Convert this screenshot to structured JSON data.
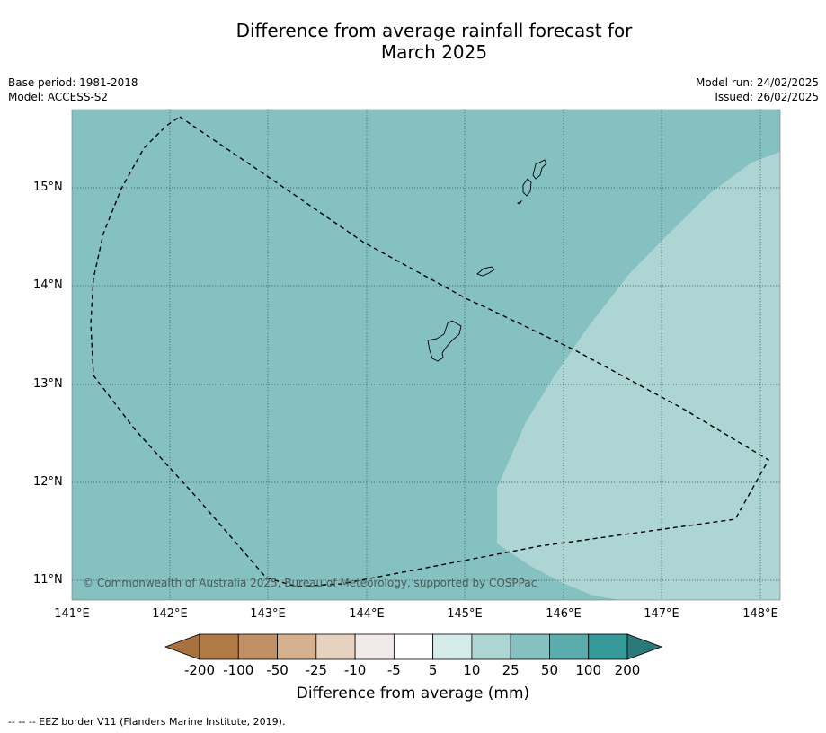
{
  "title_line1": "Difference from average rainfall forecast for",
  "title_line2": "March 2025",
  "base_period": "Base period: 1981-2018",
  "model": "Model: ACCESS-S2",
  "model_run": "Model run: 24/02/2025",
  "issued": "Issued: 26/02/2025",
  "lat_labels": [
    "15°N",
    "14°N",
    "13°N",
    "12°N",
    "11°N"
  ],
  "lon_labels": [
    "141°E",
    "142°E",
    "143°E",
    "144°E",
    "145°E",
    "146°E",
    "147°E",
    "148°E"
  ],
  "copyright": "© Commonwealth of Australia 2025, Bureau of Meteorology, supported by COSPPac",
  "colorbar": {
    "labels": [
      "-200",
      "-100",
      "-50",
      "-25",
      "-10",
      "-5",
      "5",
      "10",
      "25",
      "50",
      "100",
      "200"
    ],
    "colors": [
      "#a8713e",
      "#b07a45",
      "#c19066",
      "#d4b08f",
      "#e7d1bf",
      "#f0ebe8",
      "#ffffff",
      "#d5ebea",
      "#acd5d4",
      "#84c1c0",
      "#5aadac",
      "#36999a",
      "#2b7a7a"
    ],
    "title": "Difference from average (mm)"
  },
  "footnote": "--  --  -- EEZ border V11 (Flanders Marine Institute, 2019).",
  "map_colors": {
    "band_25_50": "#84c1c0",
    "band_10_25": "#acd5d4"
  }
}
